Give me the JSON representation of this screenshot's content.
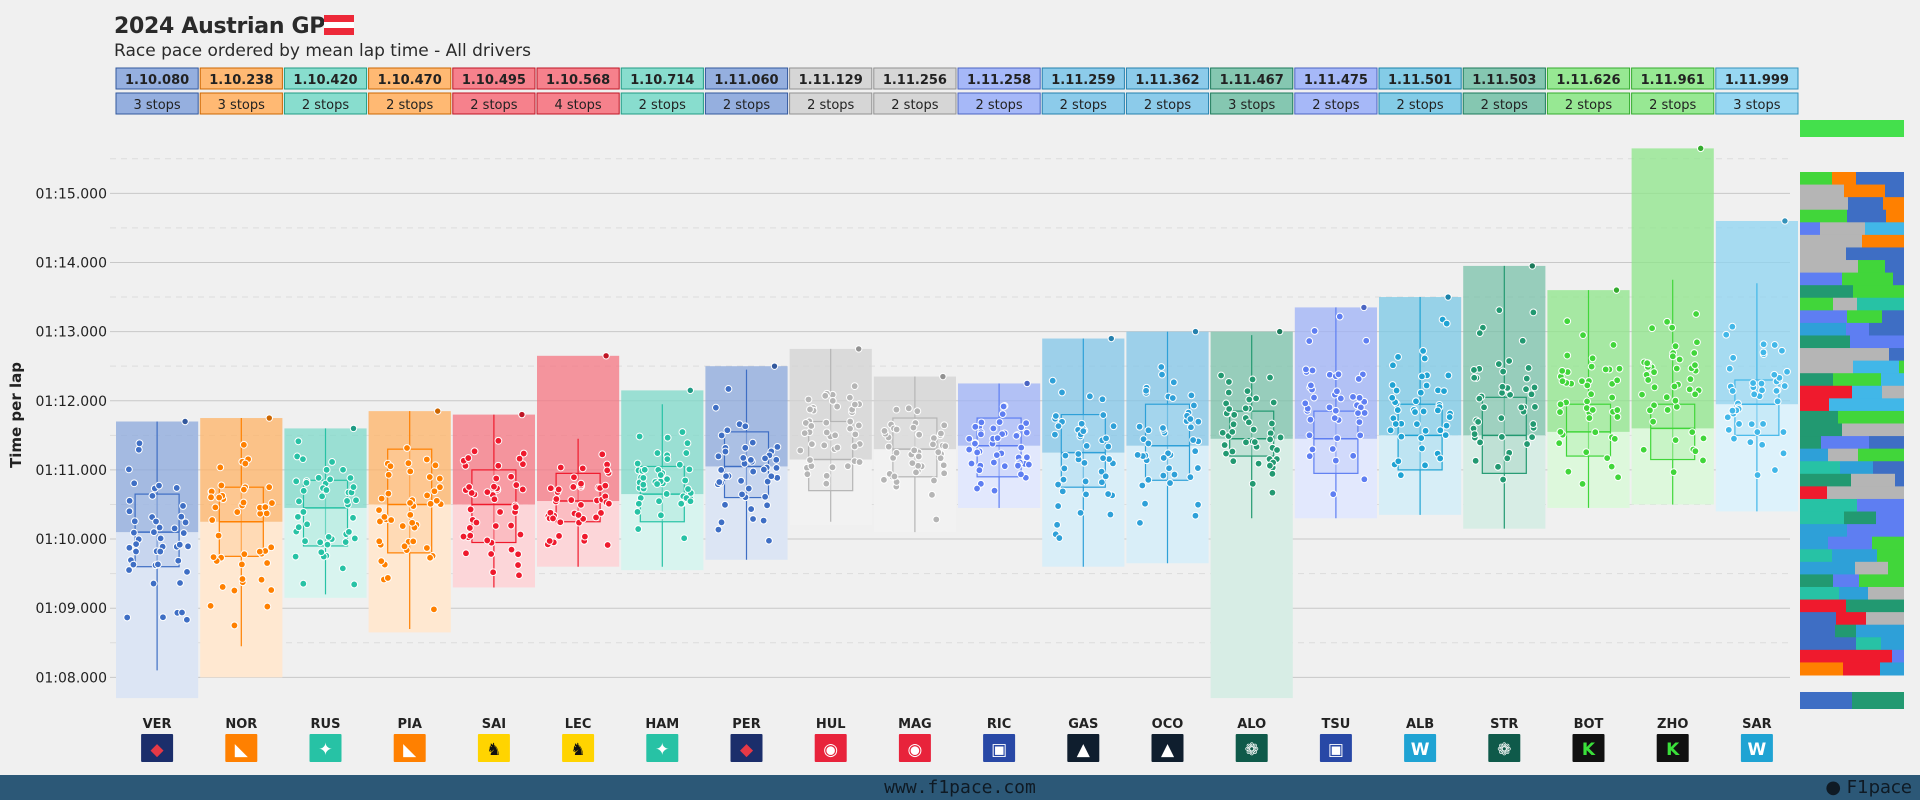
{
  "header": {
    "title": "2024 Austrian GP",
    "subtitle": "Race pace ordered by mean lap time - All drivers",
    "flag_colors": [
      "#ed2939",
      "#ffffff",
      "#ed2939"
    ]
  },
  "footer": {
    "url": "www.f1pace.com",
    "brand": "F1pace"
  },
  "chart_data": {
    "type": "box",
    "ylabel": "Time per lap",
    "yticks": [
      "01:08.000",
      "01:09.000",
      "01:10.000",
      "01:11.000",
      "01:12.000",
      "01:13.000",
      "01:14.000",
      "01:15.000"
    ],
    "ylim": [
      67.6,
      75.8
    ],
    "grid": true,
    "drivers": [
      {
        "code": "VER",
        "mean": "1.10.080",
        "stops": "3 stops",
        "color": "#3e6ec4",
        "box": [
          69.6,
          70.1,
          70.65
        ],
        "whisker": [
          68.1,
          71.7
        ],
        "min": 67.7,
        "max": 71.7,
        "icon": "redbull"
      },
      {
        "code": "NOR",
        "mean": "1.10.238",
        "stops": "3 stops",
        "color": "#ff8000",
        "box": [
          69.75,
          70.25,
          70.75
        ],
        "whisker": [
          68.45,
          71.75
        ],
        "min": 68.0,
        "max": 71.75,
        "icon": "mclaren"
      },
      {
        "code": "RUS",
        "mean": "1.10.420",
        "stops": "2 stops",
        "color": "#27c2a5",
        "box": [
          69.9,
          70.45,
          70.85
        ],
        "whisker": [
          69.2,
          71.6
        ],
        "min": 69.15,
        "max": 71.6,
        "icon": "mercedes"
      },
      {
        "code": "PIA",
        "mean": "1.10.470",
        "stops": "2 stops",
        "color": "#ff8000",
        "box": [
          69.8,
          70.5,
          71.3
        ],
        "whisker": [
          68.7,
          71.85
        ],
        "min": 68.65,
        "max": 71.85,
        "icon": "mclaren"
      },
      {
        "code": "SAI",
        "mean": "1.10.495",
        "stops": "2 stops",
        "color": "#ef1a2d",
        "box": [
          69.95,
          70.5,
          71.0
        ],
        "whisker": [
          69.3,
          71.8
        ],
        "min": 69.3,
        "max": 71.8,
        "icon": "ferrari"
      },
      {
        "code": "LEC",
        "mean": "1.10.568",
        "stops": "4 stops",
        "color": "#ef1a2d",
        "box": [
          70.25,
          70.55,
          70.95
        ],
        "whisker": [
          69.6,
          71.45
        ],
        "min": 69.6,
        "max": 72.65,
        "icon": "ferrari"
      },
      {
        "code": "HAM",
        "mean": "1.10.714",
        "stops": "2 stops",
        "color": "#27c2a5",
        "box": [
          70.25,
          70.65,
          71.05
        ],
        "whisker": [
          69.6,
          71.95
        ],
        "min": 69.55,
        "max": 72.15,
        "icon": "mercedes"
      },
      {
        "code": "PER",
        "mean": "1.11.060",
        "stops": "2 stops",
        "color": "#3e6ec4",
        "box": [
          70.6,
          71.05,
          71.55
        ],
        "whisker": [
          69.7,
          72.45
        ],
        "min": 69.7,
        "max": 72.5,
        "icon": "redbull"
      },
      {
        "code": "HUL",
        "mean": "1.11.129",
        "stops": "2 stops",
        "color": "#b5b5b5",
        "box": [
          70.7,
          71.15,
          71.7
        ],
        "whisker": [
          70.25,
          72.75
        ],
        "min": 70.2,
        "max": 72.75,
        "icon": "haas"
      },
      {
        "code": "MAG",
        "mean": "1.11.256",
        "stops": "2 stops",
        "color": "#b5b5b5",
        "box": [
          70.9,
          71.3,
          71.75
        ],
        "whisker": [
          70.1,
          72.35
        ],
        "min": 70.1,
        "max": 72.35,
        "icon": "haas"
      },
      {
        "code": "RIC",
        "mean": "1.11.258",
        "stops": "2 stops",
        "color": "#5e7ef2",
        "box": [
          70.9,
          71.35,
          71.75
        ],
        "whisker": [
          70.45,
          72.25
        ],
        "min": 70.45,
        "max": 72.25,
        "icon": "rb"
      },
      {
        "code": "GAS",
        "mean": "1.11.259",
        "stops": "2 stops",
        "color": "#2ea0d8",
        "box": [
          70.75,
          71.25,
          71.8
        ],
        "whisker": [
          69.6,
          72.9
        ],
        "min": 69.6,
        "max": 72.9,
        "icon": "alpine"
      },
      {
        "code": "OCO",
        "mean": "1.11.362",
        "stops": "2 stops",
        "color": "#2ea0d8",
        "box": [
          70.85,
          71.35,
          71.95
        ],
        "whisker": [
          69.65,
          73.0
        ],
        "min": 69.65,
        "max": 73.0,
        "icon": "alpine"
      },
      {
        "code": "ALO",
        "mean": "1.11.467",
        "stops": "3 stops",
        "color": "#229971",
        "box": [
          71.2,
          71.45,
          71.85
        ],
        "whisker": [
          70.3,
          72.95
        ],
        "min": 67.7,
        "max": 73.0,
        "icon": "aston"
      },
      {
        "code": "TSU",
        "mean": "1.11.475",
        "stops": "2 stops",
        "color": "#5e7ef2",
        "box": [
          70.95,
          71.45,
          71.85
        ],
        "whisker": [
          70.3,
          73.35
        ],
        "min": 70.3,
        "max": 73.35,
        "icon": "rb"
      },
      {
        "code": "ALB",
        "mean": "1.11.501",
        "stops": "2 stops",
        "color": "#1fa3d3",
        "box": [
          71.0,
          71.5,
          71.95
        ],
        "whisker": [
          70.35,
          73.5
        ],
        "min": 70.35,
        "max": 73.5,
        "icon": "williams"
      },
      {
        "code": "STR",
        "mean": "1.11.503",
        "stops": "2 stops",
        "color": "#229971",
        "box": [
          70.95,
          71.5,
          72.05
        ],
        "whisker": [
          70.15,
          73.95
        ],
        "min": 70.15,
        "max": 73.95,
        "icon": "aston"
      },
      {
        "code": "BOT",
        "mean": "1.11.626",
        "stops": "2 stops",
        "color": "#41d63a",
        "box": [
          71.2,
          71.55,
          71.95
        ],
        "whisker": [
          70.45,
          73.6
        ],
        "min": 70.45,
        "max": 73.6,
        "icon": "sauber"
      },
      {
        "code": "ZHO",
        "mean": "1.11.961",
        "stops": "2 stops",
        "color": "#41d63a",
        "box": [
          71.15,
          71.6,
          71.95
        ],
        "whisker": [
          70.5,
          73.75
        ],
        "min": 70.5,
        "max": 75.65,
        "icon": "sauber"
      },
      {
        "code": "SAR",
        "mean": "1.11.999",
        "stops": "3 stops",
        "color": "#41b7e8",
        "box": [
          71.5,
          71.95,
          72.3
        ],
        "whisker": [
          70.4,
          73.7
        ],
        "min": 70.4,
        "max": 74.6,
        "icon": "williams"
      }
    ]
  }
}
